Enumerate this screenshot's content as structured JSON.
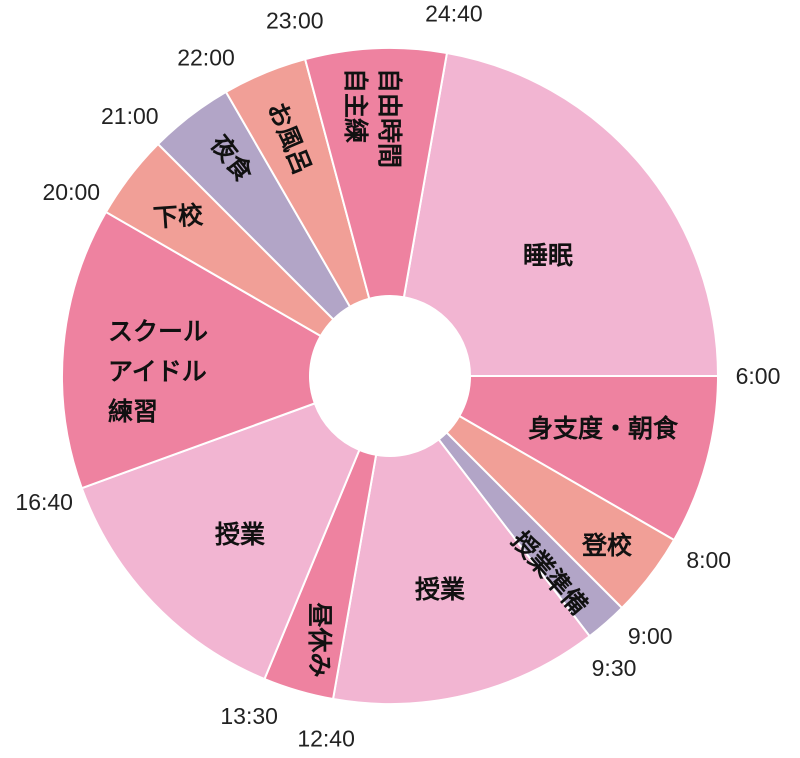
{
  "chart_data": {
    "type": "pie",
    "variant": "donut",
    "unit": "hours of day (clockwise from top = 0:00)",
    "colors": {
      "deep_pink": "#ee82a0",
      "light_pink": "#f2b5d2",
      "salmon": "#f19f97",
      "lavender": "#b2a5c7"
    },
    "segments": [
      {
        "label": "睡眠",
        "start": "24:40",
        "end": "6:00",
        "hours": 5.333,
        "color": "#f2b5d2"
      },
      {
        "label": "身支度・朝食",
        "start": "6:00",
        "end": "8:00",
        "hours": 2,
        "color": "#ee82a0"
      },
      {
        "label": "登校",
        "start": "8:00",
        "end": "9:00",
        "hours": 1,
        "color": "#f19f97"
      },
      {
        "label": "授業準備",
        "start": "9:00",
        "end": "9:30",
        "hours": 0.5,
        "color": "#b2a5c7"
      },
      {
        "label": "授業",
        "start": "9:30",
        "end": "12:40",
        "hours": 3.167,
        "color": "#f2b5d2"
      },
      {
        "label": "昼休み",
        "start": "12:40",
        "end": "13:30",
        "hours": 0.833,
        "color": "#ee82a0"
      },
      {
        "label": "授業",
        "start": "13:30",
        "end": "16:40",
        "hours": 3.167,
        "color": "#f2b5d2"
      },
      {
        "label": "スクールアイドル練習",
        "lines": [
          "スクール",
          "アイドル",
          "練習"
        ],
        "start": "16:40",
        "end": "20:00",
        "hours": 3.333,
        "color": "#ee82a0"
      },
      {
        "label": "下校",
        "start": "20:00",
        "end": "21:00",
        "hours": 1,
        "color": "#f19f97"
      },
      {
        "label": "夜食",
        "start": "21:00",
        "end": "22:00",
        "hours": 1,
        "color": "#b2a5c7"
      },
      {
        "label": "お風呂",
        "start": "22:00",
        "end": "23:00",
        "hours": 1,
        "color": "#f19f97"
      },
      {
        "label": "自由時間 自主練",
        "lines": [
          "自由時間",
          "自主練"
        ],
        "start": "23:00",
        "end": "24:40",
        "hours": 1.667,
        "color": "#ee82a0"
      }
    ],
    "tick_labels": [
      "6:00",
      "8:00",
      "9:00",
      "9:30",
      "12:40",
      "13:30",
      "16:40",
      "20:00",
      "21:00",
      "22:00",
      "23:00",
      "24:40"
    ]
  }
}
